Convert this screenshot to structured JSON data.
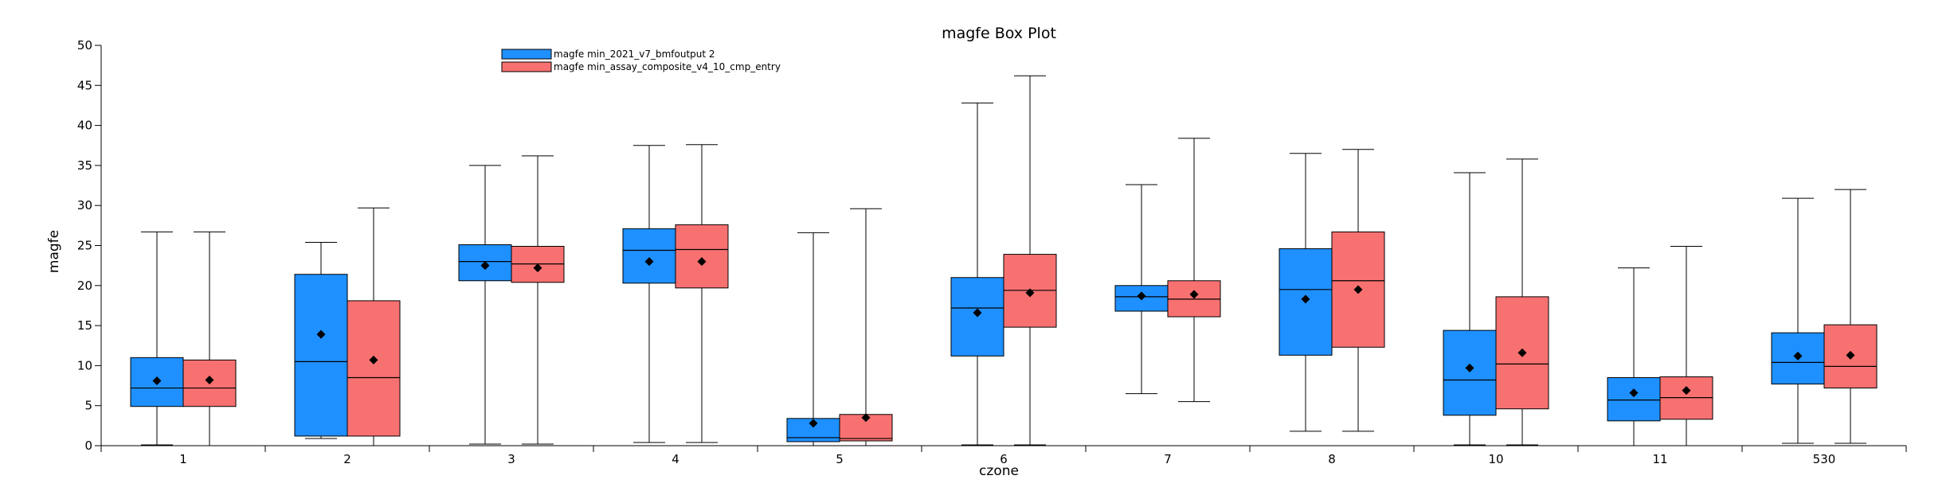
{
  "chart_data": {
    "type": "box",
    "title": "magfe  Box  Plot",
    "xlabel": "czone",
    "ylabel": "magfe",
    "ylim": [
      0,
      50
    ],
    "yticks": [
      0,
      5,
      10,
      15,
      20,
      25,
      30,
      35,
      40,
      45,
      50
    ],
    "grid": false,
    "legend_position": "top-left",
    "categories": [
      "1",
      "2",
      "3",
      "4",
      "5",
      "6",
      "7",
      "8",
      "10",
      "11",
      "530"
    ],
    "series": [
      {
        "name": "magfe  min_2021_v7_bmfoutput  2",
        "color": "#1e90ff",
        "boxes": [
          {
            "min": 0.1,
            "q1": 4.9,
            "median": 7.2,
            "q3": 11.0,
            "max": 26.7,
            "mean": 8.1
          },
          {
            "min": 0.9,
            "q1": 1.2,
            "median": 10.5,
            "q3": 21.4,
            "max": 25.4,
            "mean": 13.9
          },
          {
            "min": 0.2,
            "q1": 20.6,
            "median": 23.0,
            "q3": 25.1,
            "max": 35.0,
            "mean": 22.5
          },
          {
            "min": 0.4,
            "q1": 20.3,
            "median": 24.4,
            "q3": 27.1,
            "max": 37.5,
            "mean": 23.0
          },
          {
            "min": 0.0,
            "q1": 0.5,
            "median": 1.0,
            "q3": 3.4,
            "max": 26.6,
            "mean": 2.8
          },
          {
            "min": 0.1,
            "q1": 11.2,
            "median": 17.2,
            "q3": 21.0,
            "max": 42.8,
            "mean": 16.6
          },
          {
            "min": 6.5,
            "q1": 16.8,
            "median": 18.6,
            "q3": 20.0,
            "max": 32.6,
            "mean": 18.7
          },
          {
            "min": 1.8,
            "q1": 11.3,
            "median": 19.5,
            "q3": 24.6,
            "max": 36.5,
            "mean": 18.3
          },
          {
            "min": 0.1,
            "q1": 3.8,
            "median": 8.2,
            "q3": 14.4,
            "max": 34.1,
            "mean": 9.7
          },
          {
            "min": 0.0,
            "q1": 3.1,
            "median": 5.7,
            "q3": 8.5,
            "max": 22.2,
            "mean": 6.6
          },
          {
            "min": 0.3,
            "q1": 7.7,
            "median": 10.4,
            "q3": 14.1,
            "max": 30.9,
            "mean": 11.2
          }
        ]
      },
      {
        "name": "magfe  min_assay_composite_v4_10_cmp_entry",
        "color": "#f87171",
        "boxes": [
          {
            "min": 0.0,
            "q1": 4.9,
            "median": 7.2,
            "q3": 10.7,
            "max": 26.7,
            "mean": 8.2
          },
          {
            "min": 0.0,
            "q1": 1.2,
            "median": 8.5,
            "q3": 18.1,
            "max": 29.7,
            "mean": 10.7
          },
          {
            "min": 0.2,
            "q1": 20.4,
            "median": 22.7,
            "q3": 24.9,
            "max": 36.2,
            "mean": 22.2
          },
          {
            "min": 0.4,
            "q1": 19.7,
            "median": 24.5,
            "q3": 27.6,
            "max": 37.6,
            "mean": 23.0
          },
          {
            "min": 0.0,
            "q1": 0.6,
            "median": 0.9,
            "q3": 3.9,
            "max": 29.6,
            "mean": 3.5
          },
          {
            "min": 0.1,
            "q1": 14.8,
            "median": 19.4,
            "q3": 23.9,
            "max": 46.2,
            "mean": 19.1
          },
          {
            "min": 5.5,
            "q1": 16.1,
            "median": 18.3,
            "q3": 20.6,
            "max": 38.4,
            "mean": 18.9
          },
          {
            "min": 1.8,
            "q1": 12.3,
            "median": 20.6,
            "q3": 26.7,
            "max": 37.0,
            "mean": 19.5
          },
          {
            "min": 0.1,
            "q1": 4.6,
            "median": 10.2,
            "q3": 18.6,
            "max": 35.8,
            "mean": 11.6
          },
          {
            "min": 0.0,
            "q1": 3.3,
            "median": 6.0,
            "q3": 8.6,
            "max": 24.9,
            "mean": 6.9
          },
          {
            "min": 0.3,
            "q1": 7.2,
            "median": 9.9,
            "q3": 15.1,
            "max": 32.0,
            "mean": 11.3
          }
        ]
      }
    ]
  }
}
